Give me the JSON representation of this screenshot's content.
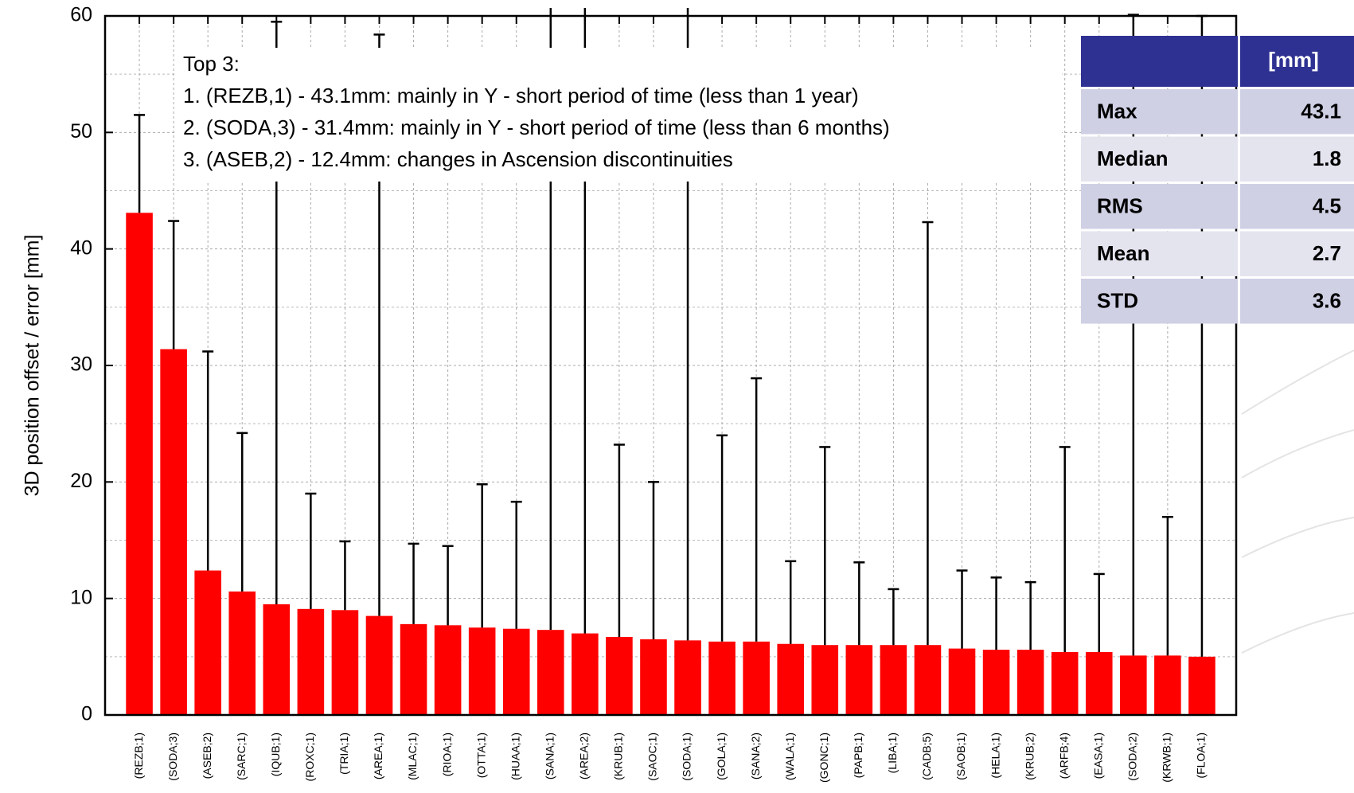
{
  "chart_data": {
    "type": "bar",
    "y_label": "3D position offset / error [mm]",
    "categories": [
      "(REZB;1)",
      "(SODA;3)",
      "(ASEB;2)",
      "(SARC;1)",
      "(IQUB;1)",
      "(ROXC;1)",
      "(TRIA;1)",
      "(AREA;1)",
      "(MLAC;1)",
      "(RIOA;1)",
      "(OTTA;1)",
      "(HUAA;1)",
      "(SANA;1)",
      "(AREA;2)",
      "(KRUB;1)",
      "(SAOC;1)",
      "(SODA;1)",
      "(GOLA;1)",
      "(SANA;2)",
      "(WALA;1)",
      "(GONC;1)",
      "(PAPB;1)",
      "(LIBA;1)",
      "(CADB;5)",
      "(SAOB;1)",
      "(HELA;1)",
      "(KRUB;2)",
      "(ARFB;4)",
      "(EASA;1)",
      "(SODA;2)",
      "(KRWB;1)",
      "(FLOA;1)"
    ],
    "values": [
      43.1,
      31.4,
      12.4,
      10.6,
      9.5,
      9.1,
      9.0,
      8.5,
      7.8,
      7.7,
      7.5,
      7.4,
      7.3,
      7.0,
      6.7,
      6.5,
      6.4,
      6.3,
      6.3,
      6.1,
      6.0,
      6.0,
      6.0,
      6.0,
      5.7,
      5.6,
      5.6,
      5.4,
      5.4,
      5.1,
      5.1,
      5.0
    ],
    "errors": [
      8.4,
      11.0,
      18.8,
      13.6,
      50.0,
      9.9,
      5.9,
      49.9,
      6.9,
      6.8,
      12.3,
      10.9,
      60,
      60,
      16.5,
      13.5,
      60,
      17.7,
      22.6,
      7.1,
      17.0,
      7.1,
      4.8,
      36.3,
      6.7,
      6.2,
      5.8,
      17.6,
      6.7,
      55,
      11.9,
      55
    ],
    "color": "#ff0000",
    "error_color": "#000000",
    "ylim": [
      0,
      60
    ],
    "yticks": [
      0,
      10,
      20,
      30,
      40,
      50,
      60
    ],
    "grid": true,
    "annotation": [
      "Top 3:",
      "1. (REZB,1) - 43.1mm: mainly in Y - short period of time (less than 1 year)",
      "2. (SODA,3) - 31.4mm: mainly in Y  - short period of time (less than 6 months)",
      "3. (ASEB,2) - 12.4mm: changes in Ascension discontinuities"
    ],
    "table": {
      "column_header": "[mm]",
      "rows": [
        [
          "Max",
          "43.1"
        ],
        [
          "Median",
          "1.8"
        ],
        [
          "RMS",
          "4.5"
        ],
        [
          "Mean",
          "2.7"
        ],
        [
          "STD",
          "3.6"
        ]
      ]
    }
  }
}
